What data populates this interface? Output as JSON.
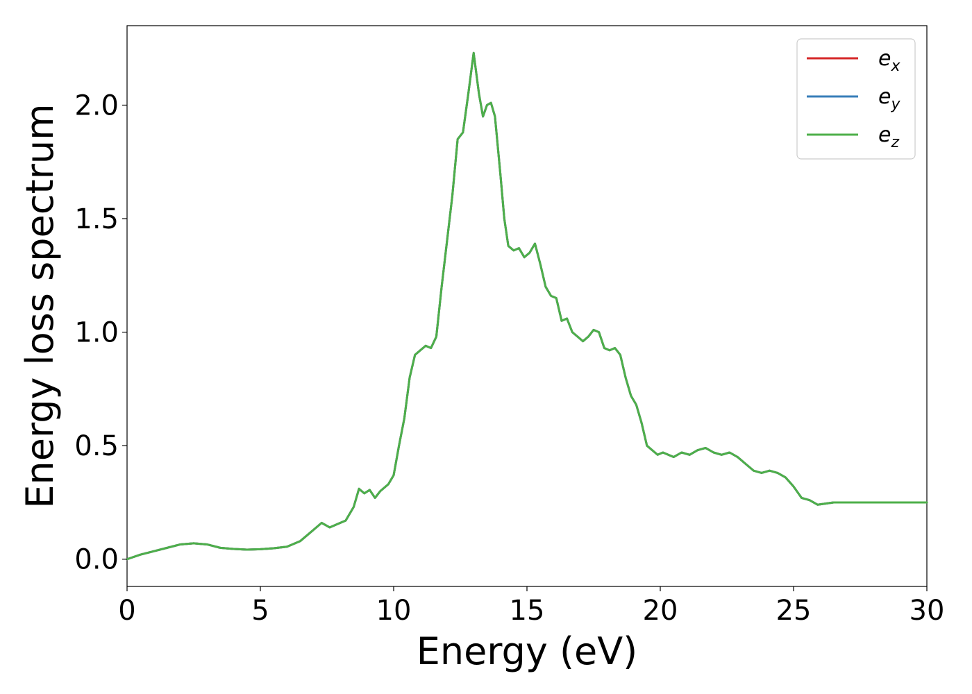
{
  "chart_data": {
    "type": "line",
    "title": "",
    "xlabel": "Energy (eV)",
    "ylabel": "Energy loss spectrum",
    "xlim": [
      0,
      30
    ],
    "ylim": [
      -0.12,
      2.35
    ],
    "xticks": [
      0,
      5,
      10,
      15,
      20,
      25,
      30
    ],
    "xtick_labels": [
      "0",
      "5",
      "10",
      "15",
      "20",
      "25",
      "30"
    ],
    "yticks": [
      0.0,
      0.5,
      1.0,
      1.5,
      2.0
    ],
    "ytick_labels": [
      "0.0",
      "0.5",
      "1.0",
      "1.5",
      "2.0"
    ],
    "grid": false,
    "legend_position": "top-right",
    "x": [
      0,
      0.5,
      1.0,
      1.5,
      2.0,
      2.5,
      3.0,
      3.5,
      4.0,
      4.5,
      5.0,
      5.5,
      6.0,
      6.5,
      7.0,
      7.3,
      7.6,
      7.9,
      8.2,
      8.5,
      8.7,
      8.9,
      9.1,
      9.3,
      9.5,
      9.8,
      10.0,
      10.2,
      10.4,
      10.6,
      10.8,
      11.0,
      11.2,
      11.4,
      11.6,
      11.8,
      12.0,
      12.2,
      12.4,
      12.6,
      12.8,
      13.0,
      13.2,
      13.35,
      13.5,
      13.65,
      13.8,
      14.0,
      14.15,
      14.3,
      14.5,
      14.7,
      14.9,
      15.1,
      15.3,
      15.5,
      15.7,
      15.9,
      16.1,
      16.3,
      16.5,
      16.7,
      16.9,
      17.1,
      17.3,
      17.5,
      17.7,
      17.9,
      18.1,
      18.3,
      18.5,
      18.7,
      18.9,
      19.1,
      19.3,
      19.5,
      19.7,
      19.9,
      20.1,
      20.3,
      20.5,
      20.8,
      21.1,
      21.4,
      21.7,
      22.0,
      22.3,
      22.6,
      22.9,
      23.2,
      23.5,
      23.8,
      24.1,
      24.4,
      24.7,
      25.0,
      25.3,
      25.6,
      25.9,
      26.2,
      26.5,
      26.8,
      27.1,
      27.4,
      27.7,
      28.0,
      28.3,
      28.6,
      28.9,
      29.2,
      29.5,
      29.8,
      30.0
    ],
    "series": [
      {
        "name": "e_x",
        "color": "#d62728",
        "values": [
          0.0,
          0.02,
          0.035,
          0.05,
          0.065,
          0.07,
          0.065,
          0.05,
          0.045,
          0.042,
          0.044,
          0.048,
          0.055,
          0.08,
          0.13,
          0.16,
          0.14,
          0.155,
          0.17,
          0.23,
          0.31,
          0.29,
          0.305,
          0.27,
          0.3,
          0.33,
          0.37,
          0.5,
          0.62,
          0.8,
          0.9,
          0.92,
          0.94,
          0.93,
          0.98,
          1.2,
          1.4,
          1.6,
          1.85,
          1.88,
          2.05,
          2.23,
          2.05,
          1.95,
          2.0,
          2.01,
          1.95,
          1.7,
          1.5,
          1.38,
          1.36,
          1.37,
          1.33,
          1.35,
          1.39,
          1.3,
          1.2,
          1.16,
          1.15,
          1.05,
          1.06,
          1.0,
          0.98,
          0.96,
          0.98,
          1.01,
          1.0,
          0.93,
          0.92,
          0.93,
          0.9,
          0.8,
          0.72,
          0.68,
          0.6,
          0.5,
          0.48,
          0.46,
          0.47,
          0.46,
          0.45,
          0.47,
          0.46,
          0.48,
          0.49,
          0.47,
          0.46,
          0.47,
          0.45,
          0.42,
          0.39,
          0.38,
          0.39,
          0.38,
          0.36,
          0.32,
          0.27,
          0.26,
          0.24,
          0.245,
          0.25,
          0.25,
          0.25,
          0.25,
          0.25,
          0.25,
          0.25,
          0.25,
          0.25,
          0.25,
          0.25,
          0.25,
          0.25
        ]
      },
      {
        "name": "e_y",
        "color": "#377eb8",
        "values": [
          0.0,
          0.02,
          0.035,
          0.05,
          0.065,
          0.07,
          0.065,
          0.05,
          0.045,
          0.042,
          0.044,
          0.048,
          0.055,
          0.08,
          0.13,
          0.16,
          0.14,
          0.155,
          0.17,
          0.23,
          0.31,
          0.29,
          0.305,
          0.27,
          0.3,
          0.33,
          0.37,
          0.5,
          0.62,
          0.8,
          0.9,
          0.92,
          0.94,
          0.93,
          0.98,
          1.2,
          1.4,
          1.6,
          1.85,
          1.88,
          2.05,
          2.23,
          2.05,
          1.95,
          2.0,
          2.01,
          1.95,
          1.7,
          1.5,
          1.38,
          1.36,
          1.37,
          1.33,
          1.35,
          1.39,
          1.3,
          1.2,
          1.16,
          1.15,
          1.05,
          1.06,
          1.0,
          0.98,
          0.96,
          0.98,
          1.01,
          1.0,
          0.93,
          0.92,
          0.93,
          0.9,
          0.8,
          0.72,
          0.68,
          0.6,
          0.5,
          0.48,
          0.46,
          0.47,
          0.46,
          0.45,
          0.47,
          0.46,
          0.48,
          0.49,
          0.47,
          0.46,
          0.47,
          0.45,
          0.42,
          0.39,
          0.38,
          0.39,
          0.38,
          0.36,
          0.32,
          0.27,
          0.26,
          0.24,
          0.245,
          0.25,
          0.25,
          0.25,
          0.25,
          0.25,
          0.25,
          0.25,
          0.25,
          0.25,
          0.25,
          0.25,
          0.25,
          0.25
        ]
      },
      {
        "name": "e_z",
        "color": "#4daf4a",
        "values": [
          0.0,
          0.02,
          0.035,
          0.05,
          0.065,
          0.07,
          0.065,
          0.05,
          0.045,
          0.042,
          0.044,
          0.048,
          0.055,
          0.08,
          0.13,
          0.16,
          0.14,
          0.155,
          0.17,
          0.23,
          0.31,
          0.29,
          0.305,
          0.27,
          0.3,
          0.33,
          0.37,
          0.5,
          0.62,
          0.8,
          0.9,
          0.92,
          0.94,
          0.93,
          0.98,
          1.2,
          1.4,
          1.6,
          1.85,
          1.88,
          2.05,
          2.23,
          2.05,
          1.95,
          2.0,
          2.01,
          1.95,
          1.7,
          1.5,
          1.38,
          1.36,
          1.37,
          1.33,
          1.35,
          1.39,
          1.3,
          1.2,
          1.16,
          1.15,
          1.05,
          1.06,
          1.0,
          0.98,
          0.96,
          0.98,
          1.01,
          1.0,
          0.93,
          0.92,
          0.93,
          0.9,
          0.8,
          0.72,
          0.68,
          0.6,
          0.5,
          0.48,
          0.46,
          0.47,
          0.46,
          0.45,
          0.47,
          0.46,
          0.48,
          0.49,
          0.47,
          0.46,
          0.47,
          0.45,
          0.42,
          0.39,
          0.38,
          0.39,
          0.38,
          0.36,
          0.32,
          0.27,
          0.26,
          0.24,
          0.245,
          0.25,
          0.25,
          0.25,
          0.25,
          0.25,
          0.25,
          0.25,
          0.25,
          0.25,
          0.25,
          0.25,
          0.25,
          0.25
        ]
      }
    ],
    "legend": [
      {
        "base": "e",
        "sub": "x",
        "color": "#d62728"
      },
      {
        "base": "e",
        "sub": "y",
        "color": "#377eb8"
      },
      {
        "base": "e",
        "sub": "z",
        "color": "#4daf4a"
      }
    ]
  }
}
